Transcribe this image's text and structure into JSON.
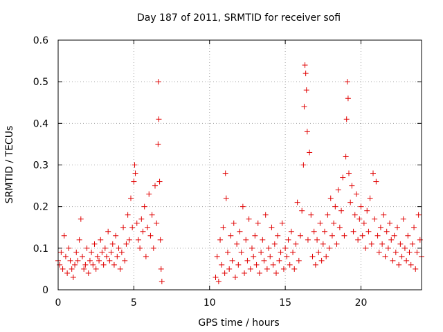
{
  "chart_data": {
    "type": "scatter",
    "title": "Day 187 of 2011, SRMTID for receiver sofi",
    "xlabel": "GPS time / hours",
    "ylabel": "SRMTID / TECUs",
    "xlim": [
      0,
      24
    ],
    "ylim": [
      0,
      0.6
    ],
    "xticks": [
      0,
      5,
      10,
      15,
      20
    ],
    "yticks": [
      0,
      0.1,
      0.2,
      0.3,
      0.4,
      0.5,
      0.6
    ],
    "grid": true,
    "marker": "+",
    "color": "#e00000",
    "series": [
      {
        "name": "SRMTID",
        "points": [
          [
            0.0,
            0.07
          ],
          [
            0.1,
            0.06
          ],
          [
            0.2,
            0.09
          ],
          [
            0.3,
            0.05
          ],
          [
            0.4,
            0.13
          ],
          [
            0.5,
            0.08
          ],
          [
            0.6,
            0.04
          ],
          [
            0.7,
            0.1
          ],
          [
            0.8,
            0.07
          ],
          [
            0.9,
            0.05
          ],
          [
            1.0,
            0.03
          ],
          [
            1.1,
            0.06
          ],
          [
            1.2,
            0.09
          ],
          [
            1.3,
            0.07
          ],
          [
            1.4,
            0.12
          ],
          [
            1.5,
            0.17
          ],
          [
            1.6,
            0.08
          ],
          [
            1.7,
            0.05
          ],
          [
            1.8,
            0.06
          ],
          [
            1.9,
            0.1
          ],
          [
            2.0,
            0.04
          ],
          [
            2.1,
            0.07
          ],
          [
            2.2,
            0.09
          ],
          [
            2.3,
            0.06
          ],
          [
            2.4,
            0.11
          ],
          [
            2.5,
            0.05
          ],
          [
            2.6,
            0.08
          ],
          [
            2.7,
            0.07
          ],
          [
            2.8,
            0.12
          ],
          [
            2.9,
            0.09
          ],
          [
            3.0,
            0.06
          ],
          [
            3.1,
            0.1
          ],
          [
            3.2,
            0.08
          ],
          [
            3.3,
            0.14
          ],
          [
            3.4,
            0.07
          ],
          [
            3.5,
            0.09
          ],
          [
            3.6,
            0.11
          ],
          [
            3.7,
            0.06
          ],
          [
            3.8,
            0.13
          ],
          [
            3.9,
            0.08
          ],
          [
            4.0,
            0.1
          ],
          [
            4.1,
            0.05
          ],
          [
            4.2,
            0.09
          ],
          [
            4.3,
            0.15
          ],
          [
            4.4,
            0.07
          ],
          [
            4.5,
            0.11
          ],
          [
            4.6,
            0.18
          ],
          [
            4.7,
            0.12
          ],
          [
            4.8,
            0.22
          ],
          [
            4.9,
            0.15
          ],
          [
            5.0,
            0.26
          ],
          [
            5.05,
            0.3
          ],
          [
            5.1,
            0.28
          ],
          [
            5.2,
            0.16
          ],
          [
            5.3,
            0.12
          ],
          [
            5.4,
            0.1
          ],
          [
            5.5,
            0.17
          ],
          [
            5.6,
            0.14
          ],
          [
            5.7,
            0.2
          ],
          [
            5.8,
            0.08
          ],
          [
            5.9,
            0.15
          ],
          [
            6.0,
            0.23
          ],
          [
            6.1,
            0.13
          ],
          [
            6.2,
            0.18
          ],
          [
            6.3,
            0.1
          ],
          [
            6.4,
            0.25
          ],
          [
            6.5,
            0.16
          ],
          [
            6.6,
            0.35
          ],
          [
            6.62,
            0.5
          ],
          [
            6.65,
            0.41
          ],
          [
            6.7,
            0.26
          ],
          [
            6.75,
            0.12
          ],
          [
            6.8,
            0.05
          ],
          [
            6.85,
            0.02
          ],
          [
            10.4,
            0.03
          ],
          [
            10.5,
            0.08
          ],
          [
            10.6,
            0.02
          ],
          [
            10.7,
            0.12
          ],
          [
            10.8,
            0.06
          ],
          [
            10.9,
            0.15
          ],
          [
            11.0,
            0.04
          ],
          [
            11.05,
            0.28
          ],
          [
            11.1,
            0.22
          ],
          [
            11.2,
            0.09
          ],
          [
            11.3,
            0.05
          ],
          [
            11.4,
            0.13
          ],
          [
            11.5,
            0.07
          ],
          [
            11.6,
            0.16
          ],
          [
            11.7,
            0.03
          ],
          [
            11.8,
            0.11
          ],
          [
            11.9,
            0.06
          ],
          [
            12.0,
            0.14
          ],
          [
            12.1,
            0.09
          ],
          [
            12.2,
            0.2
          ],
          [
            12.3,
            0.04
          ],
          [
            12.4,
            0.12
          ],
          [
            12.5,
            0.07
          ],
          [
            12.6,
            0.17
          ],
          [
            12.7,
            0.05
          ],
          [
            12.8,
            0.1
          ],
          [
            12.9,
            0.08
          ],
          [
            13.0,
            0.13
          ],
          [
            13.1,
            0.06
          ],
          [
            13.2,
            0.16
          ],
          [
            13.3,
            0.04
          ],
          [
            13.4,
            0.09
          ],
          [
            13.5,
            0.12
          ],
          [
            13.6,
            0.07
          ],
          [
            13.7,
            0.18
          ],
          [
            13.8,
            0.05
          ],
          [
            13.9,
            0.1
          ],
          [
            14.0,
            0.08
          ],
          [
            14.1,
            0.15
          ],
          [
            14.2,
            0.06
          ],
          [
            14.3,
            0.11
          ],
          [
            14.4,
            0.04
          ],
          [
            14.5,
            0.13
          ],
          [
            14.6,
            0.07
          ],
          [
            14.7,
            0.09
          ],
          [
            14.8,
            0.16
          ],
          [
            14.9,
            0.05
          ],
          [
            15.0,
            0.1
          ],
          [
            15.1,
            0.08
          ],
          [
            15.2,
            0.12
          ],
          [
            15.3,
            0.06
          ],
          [
            15.4,
            0.14
          ],
          [
            15.5,
            0.09
          ],
          [
            15.6,
            0.05
          ],
          [
            15.7,
            0.11
          ],
          [
            15.8,
            0.21
          ],
          [
            15.9,
            0.07
          ],
          [
            16.0,
            0.13
          ],
          [
            16.1,
            0.19
          ],
          [
            16.2,
            0.3
          ],
          [
            16.25,
            0.44
          ],
          [
            16.3,
            0.54
          ],
          [
            16.35,
            0.52
          ],
          [
            16.4,
            0.48
          ],
          [
            16.45,
            0.38
          ],
          [
            16.5,
            0.12
          ],
          [
            16.6,
            0.33
          ],
          [
            16.7,
            0.18
          ],
          [
            16.8,
            0.08
          ],
          [
            16.9,
            0.14
          ],
          [
            17.0,
            0.06
          ],
          [
            17.1,
            0.12
          ],
          [
            17.2,
            0.09
          ],
          [
            17.3,
            0.16
          ],
          [
            17.4,
            0.07
          ],
          [
            17.5,
            0.11
          ],
          [
            17.6,
            0.14
          ],
          [
            17.7,
            0.08
          ],
          [
            17.8,
            0.18
          ],
          [
            17.9,
            0.1
          ],
          [
            18.0,
            0.22
          ],
          [
            18.1,
            0.13
          ],
          [
            18.2,
            0.16
          ],
          [
            18.3,
            0.2
          ],
          [
            18.4,
            0.11
          ],
          [
            18.5,
            0.24
          ],
          [
            18.6,
            0.15
          ],
          [
            18.7,
            0.19
          ],
          [
            18.8,
            0.27
          ],
          [
            18.9,
            0.13
          ],
          [
            19.0,
            0.32
          ],
          [
            19.05,
            0.41
          ],
          [
            19.1,
            0.5
          ],
          [
            19.15,
            0.46
          ],
          [
            19.2,
            0.28
          ],
          [
            19.3,
            0.21
          ],
          [
            19.4,
            0.25
          ],
          [
            19.5,
            0.14
          ],
          [
            19.6,
            0.18
          ],
          [
            19.7,
            0.23
          ],
          [
            19.8,
            0.12
          ],
          [
            19.9,
            0.17
          ],
          [
            20.0,
            0.2
          ],
          [
            20.1,
            0.13
          ],
          [
            20.2,
            0.16
          ],
          [
            20.3,
            0.1
          ],
          [
            20.4,
            0.19
          ],
          [
            20.5,
            0.14
          ],
          [
            20.6,
            0.22
          ],
          [
            20.7,
            0.11
          ],
          [
            20.8,
            0.28
          ],
          [
            20.9,
            0.17
          ],
          [
            21.0,
            0.26
          ],
          [
            21.1,
            0.13
          ],
          [
            21.2,
            0.09
          ],
          [
            21.3,
            0.15
          ],
          [
            21.4,
            0.11
          ],
          [
            21.5,
            0.18
          ],
          [
            21.6,
            0.08
          ],
          [
            21.7,
            0.14
          ],
          [
            21.8,
            0.1
          ],
          [
            21.9,
            0.16
          ],
          [
            22.0,
            0.12
          ],
          [
            22.1,
            0.07
          ],
          [
            22.2,
            0.13
          ],
          [
            22.3,
            0.09
          ],
          [
            22.4,
            0.15
          ],
          [
            22.5,
            0.06
          ],
          [
            22.6,
            0.11
          ],
          [
            22.7,
            0.08
          ],
          [
            22.8,
            0.17
          ],
          [
            22.9,
            0.1
          ],
          [
            23.0,
            0.07
          ],
          [
            23.1,
            0.13
          ],
          [
            23.2,
            0.09
          ],
          [
            23.3,
            0.06
          ],
          [
            23.4,
            0.11
          ],
          [
            23.5,
            0.15
          ],
          [
            23.6,
            0.05
          ],
          [
            23.7,
            0.09
          ],
          [
            23.8,
            0.18
          ],
          [
            23.9,
            0.12
          ],
          [
            24.0,
            0.08
          ]
        ]
      }
    ]
  }
}
